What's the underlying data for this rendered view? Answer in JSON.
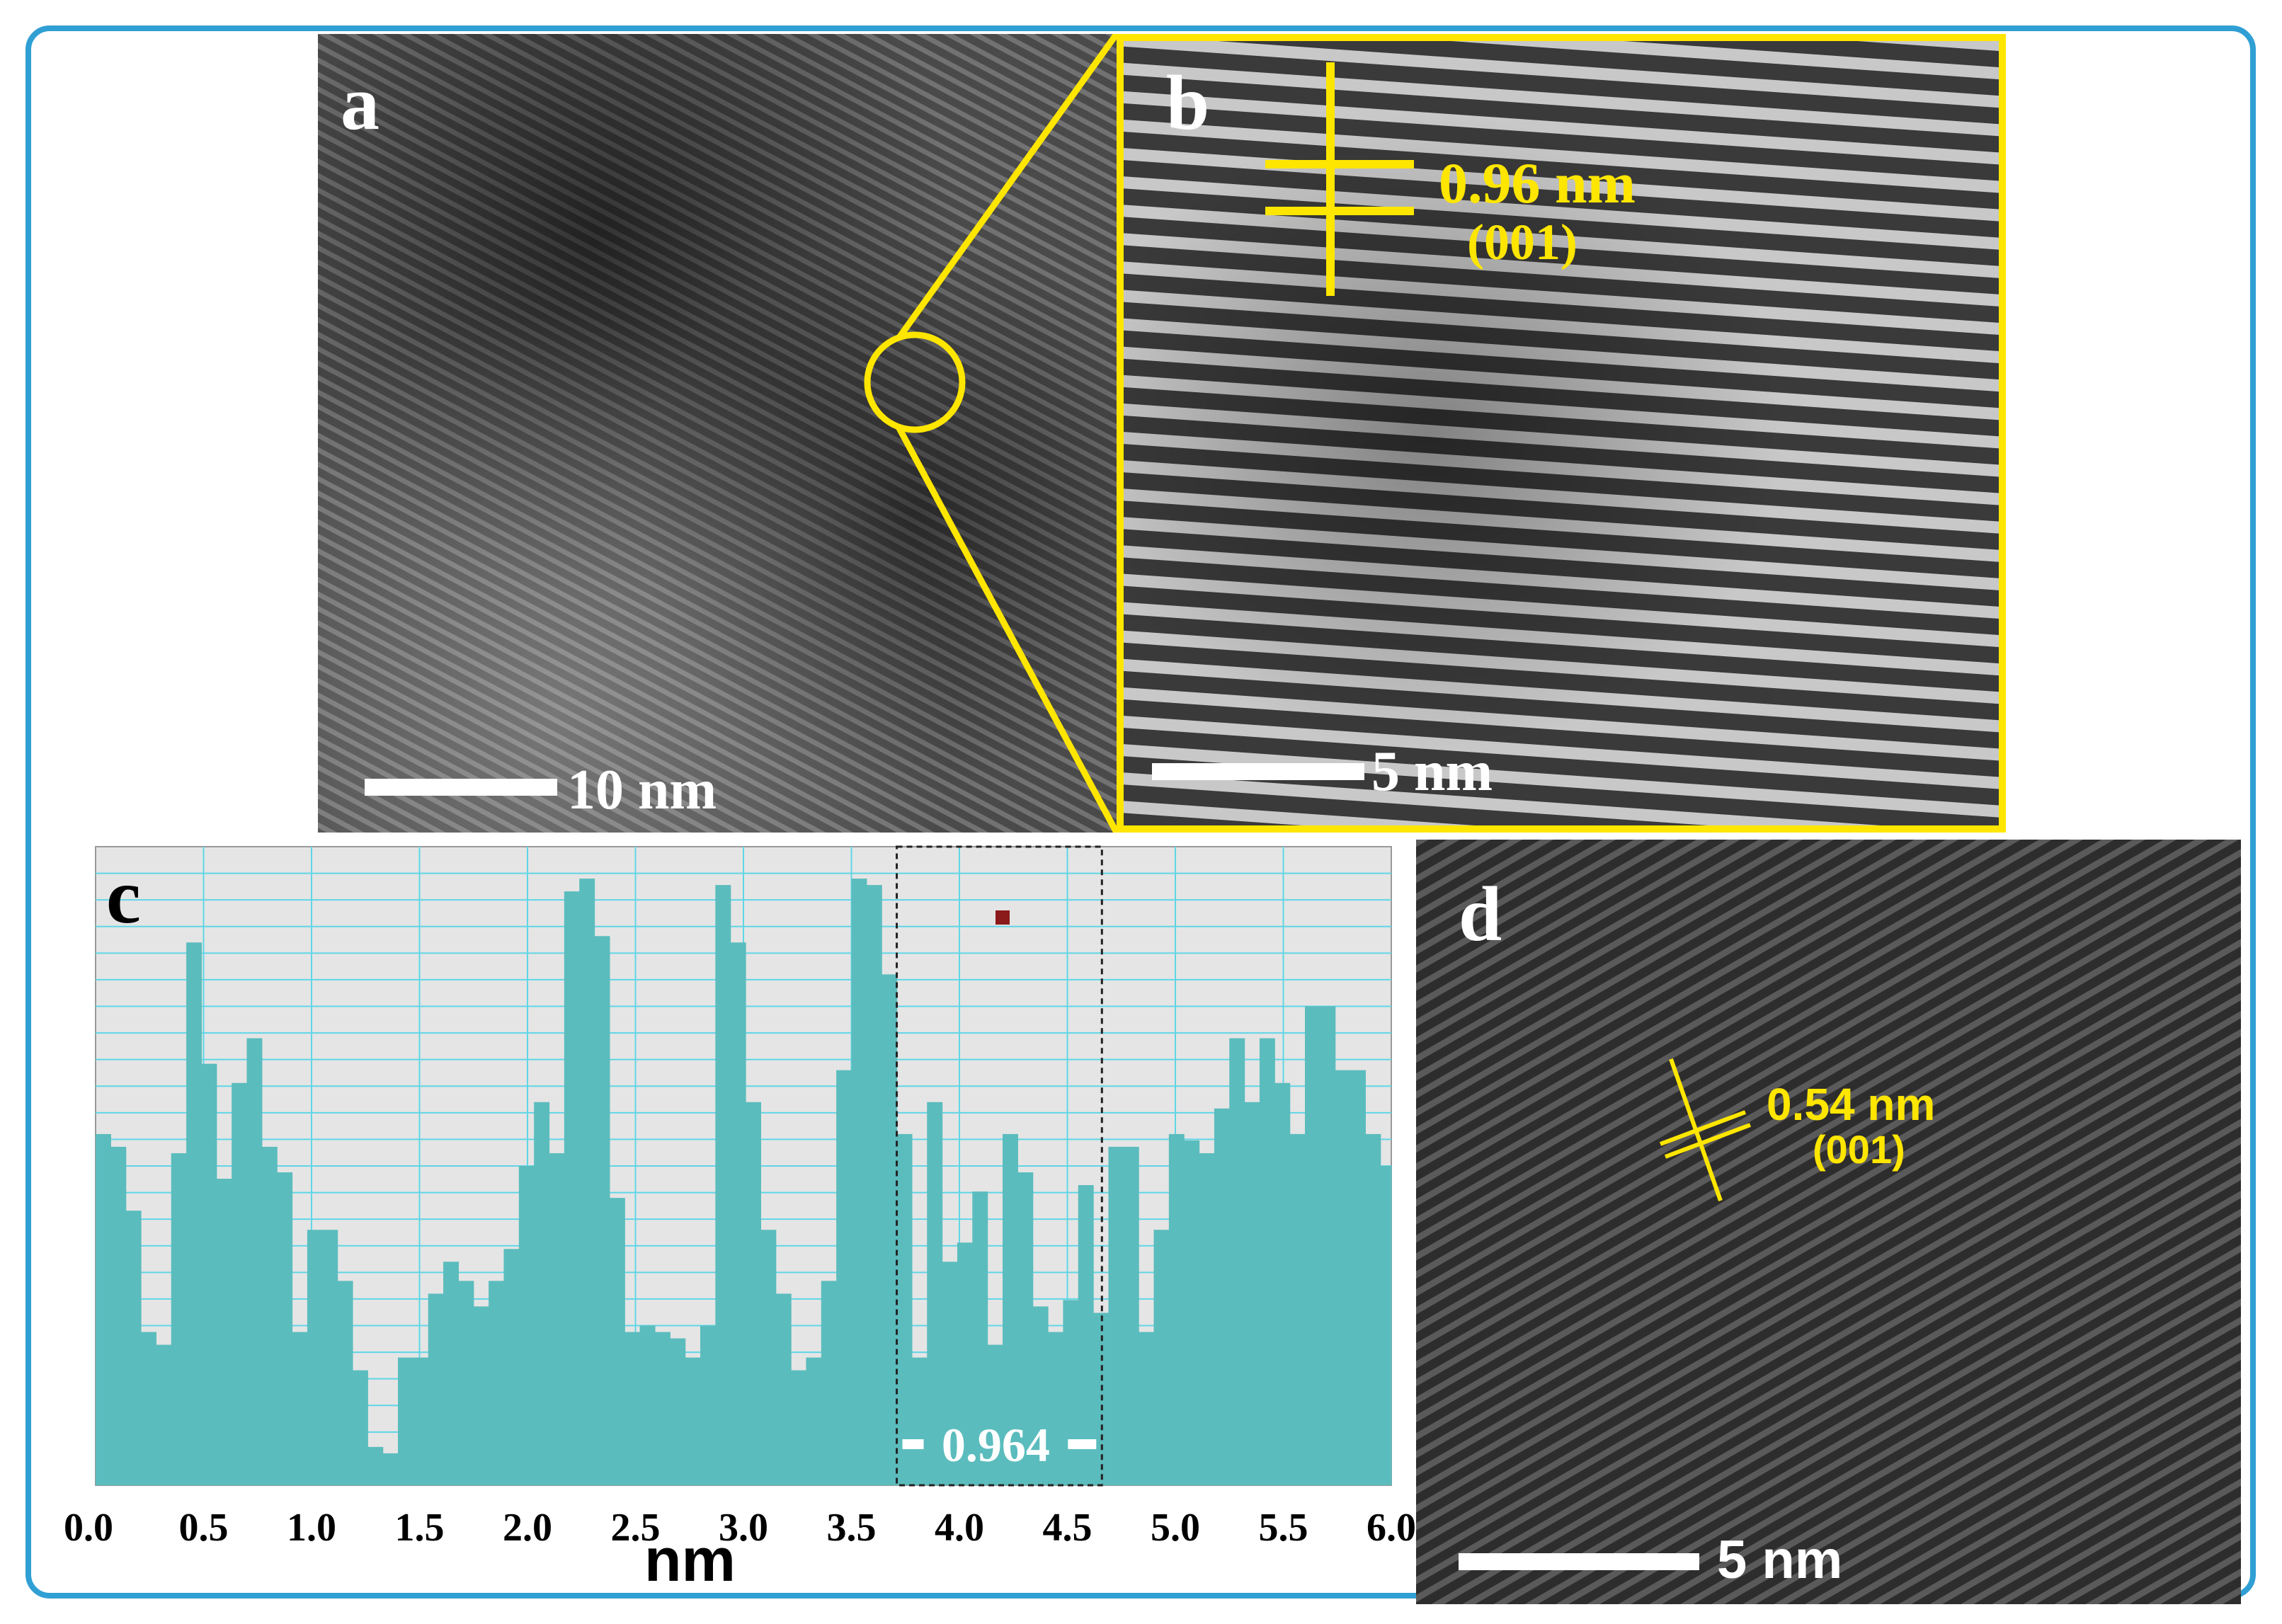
{
  "panels": {
    "a": {
      "label": "a",
      "scale_bar": "10 nm"
    },
    "b": {
      "label": "b",
      "spacing": "0.96 nm",
      "plane": "(001)",
      "scale_bar": "5 nm"
    },
    "c": {
      "label": "c",
      "xlabel": "nm",
      "measure": "0.964"
    },
    "d": {
      "label": "d",
      "spacing": "0.54 nm",
      "plane": "(001)",
      "scale_bar": "5 nm"
    }
  },
  "colors": {
    "frame": "#2f9fd4",
    "highlight": "#ffe600",
    "profile_fill": "#5bbcbd",
    "profile_bg": "#e5e5e5",
    "grid": "#5fd6e6",
    "marker": "#8b1a1a"
  },
  "chart_data": {
    "type": "bar",
    "title": "",
    "xlabel": "nm",
    "ylabel": "",
    "xlim": [
      0.0,
      6.0
    ],
    "ylim": [
      0,
      100
    ],
    "grid": true,
    "x_ticks": [
      "0.0",
      "0.5",
      "1.0",
      "1.5",
      "2.0",
      "2.5",
      "3.0",
      "3.5",
      "4.0",
      "4.5",
      "5.0",
      "5.5",
      "6.0"
    ],
    "x": [
      0.0,
      0.07,
      0.14,
      0.21,
      0.28,
      0.35,
      0.42,
      0.49,
      0.56,
      0.63,
      0.7,
      0.77,
      0.84,
      0.91,
      0.98,
      1.05,
      1.12,
      1.19,
      1.26,
      1.33,
      1.4,
      1.47,
      1.54,
      1.61,
      1.68,
      1.75,
      1.82,
      1.89,
      1.96,
      2.03,
      2.1,
      2.17,
      2.24,
      2.31,
      2.38,
      2.45,
      2.52,
      2.59,
      2.66,
      2.73,
      2.8,
      2.87,
      2.94,
      3.01,
      3.08,
      3.15,
      3.22,
      3.29,
      3.36,
      3.43,
      3.5,
      3.57,
      3.64,
      3.71,
      3.78,
      3.85,
      3.92,
      3.99,
      4.06,
      4.13,
      4.2,
      4.27,
      4.34,
      4.41,
      4.48,
      4.55,
      4.62,
      4.69,
      4.76,
      4.83,
      4.9,
      4.97,
      5.04,
      5.11,
      5.18,
      5.25,
      5.32,
      5.39,
      5.46,
      5.53,
      5.6,
      5.67,
      5.74,
      5.81,
      5.88,
      5.95
    ],
    "values": [
      55,
      53,
      43,
      24,
      22,
      52,
      85,
      66,
      48,
      63,
      70,
      53,
      49,
      24,
      40,
      40,
      32,
      18,
      6,
      5,
      20,
      20,
      30,
      35,
      32,
      28,
      32,
      37,
      50,
      60,
      52,
      93,
      95,
      86,
      45,
      24,
      25,
      24,
      23,
      20,
      25,
      94,
      85,
      60,
      40,
      30,
      18,
      20,
      32,
      65,
      95,
      94,
      80,
      55,
      20,
      60,
      35,
      38,
      46,
      22,
      55,
      49,
      28,
      24,
      29,
      47,
      27,
      53,
      53,
      24,
      40,
      55,
      54,
      52,
      59,
      70,
      60,
      70,
      63,
      55,
      75,
      75,
      65,
      65,
      55,
      50
    ],
    "annotations": [
      {
        "text": "0.964",
        "type": "interval",
        "x_start": 3.71,
        "x_end": 4.66
      }
    ]
  }
}
